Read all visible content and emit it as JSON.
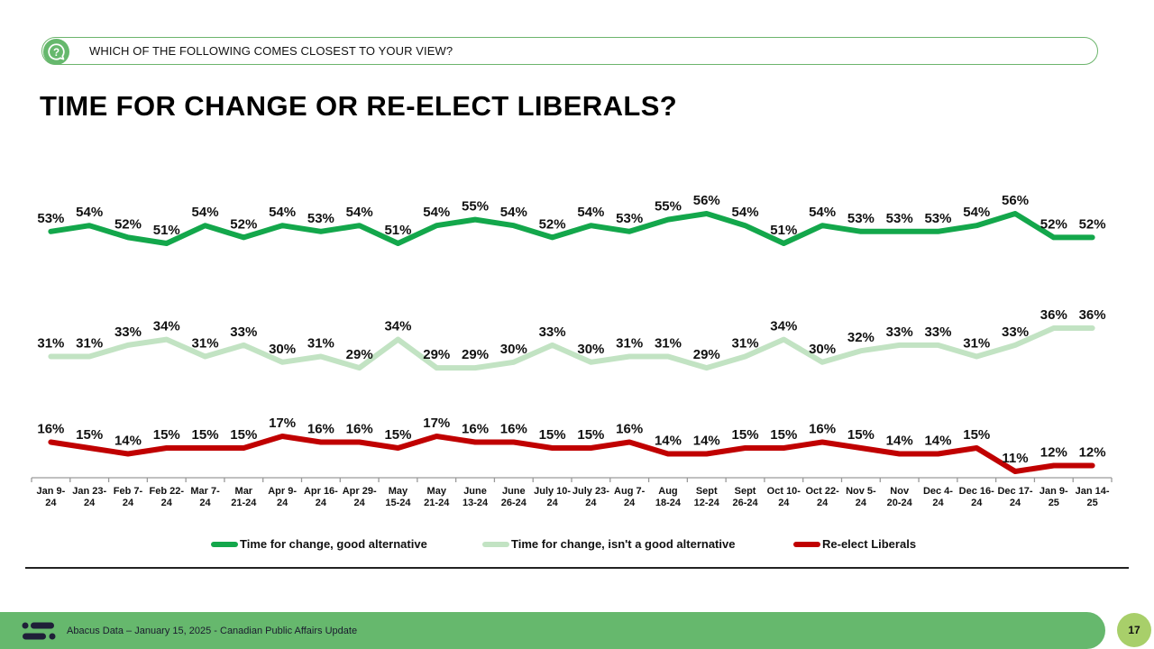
{
  "header": {
    "question": "WHICH OF THE FOLLOWING COMES CLOSEST TO YOUR VIEW?",
    "question_icon": "question-bubble-icon",
    "title": "TIME FOR CHANGE OR RE-ELECT LIBERALS?"
  },
  "colors": {
    "accent_green": "#66b86d",
    "series_good_alt": "#13a74b",
    "series_not_good_alt": "#c2e3c3",
    "series_reelect": "#c00000",
    "page_badge": "#a8cf6a",
    "logo_dark": "#1f1f38"
  },
  "chart_data": {
    "type": "line",
    "title": "TIME FOR CHANGE OR RE-ELECT LIBERALS?",
    "xlabel": "",
    "ylabel": "",
    "grid": false,
    "legend_position": "bottom",
    "value_suffix": "%",
    "categories": [
      [
        "Jan 9-",
        "24"
      ],
      [
        "Jan 23-",
        "24"
      ],
      [
        "Feb 7-",
        "24"
      ],
      [
        "Feb 22-",
        "24"
      ],
      [
        "Mar 7-",
        "24"
      ],
      [
        "Mar",
        "21-24"
      ],
      [
        "Apr 9-",
        "24"
      ],
      [
        "Apr 16-",
        "24"
      ],
      [
        "Apr 29-",
        "24"
      ],
      [
        "May",
        "15-24"
      ],
      [
        "May",
        "21-24"
      ],
      [
        "June",
        "13-24"
      ],
      [
        "June",
        "26-24"
      ],
      [
        "July 10-",
        "24"
      ],
      [
        "July 23-",
        "24"
      ],
      [
        "Aug 7-",
        "24"
      ],
      [
        "Aug",
        "18-24"
      ],
      [
        "Sept",
        "12-24"
      ],
      [
        "Sept",
        "26-24"
      ],
      [
        "Oct 10-",
        "24"
      ],
      [
        "Oct 22-",
        "24"
      ],
      [
        "Nov 5-",
        "24"
      ],
      [
        "Nov",
        "20-24"
      ],
      [
        "Dec 4-",
        "24"
      ],
      [
        "Dec 16-",
        "24"
      ],
      [
        "Dec 17-",
        "24"
      ],
      [
        "Jan 9-",
        "25"
      ],
      [
        "Jan 14-",
        "25"
      ]
    ],
    "series": [
      {
        "name": "Time for change, good alternative",
        "color": "#13a74b",
        "values": [
          53,
          54,
          52,
          51,
          54,
          52,
          54,
          53,
          54,
          51,
          54,
          55,
          54,
          52,
          54,
          53,
          55,
          56,
          54,
          51,
          54,
          53,
          53,
          53,
          54,
          56,
          52,
          52
        ]
      },
      {
        "name": "Time for change, isn't a good alternative",
        "color": "#c2e3c3",
        "values": [
          31,
          31,
          33,
          34,
          31,
          33,
          30,
          31,
          29,
          34,
          29,
          29,
          30,
          33,
          30,
          31,
          31,
          29,
          31,
          34,
          30,
          32,
          33,
          33,
          31,
          33,
          36,
          36
        ]
      },
      {
        "name": "Re-elect Liberals",
        "color": "#c00000",
        "values": [
          16,
          15,
          14,
          15,
          15,
          15,
          17,
          16,
          16,
          15,
          17,
          16,
          16,
          15,
          15,
          16,
          14,
          14,
          15,
          15,
          16,
          15,
          14,
          14,
          15,
          11,
          12,
          12
        ]
      }
    ]
  },
  "legend": {
    "items": [
      {
        "label": "Time for change, good alternative",
        "color": "#13a74b"
      },
      {
        "label": "Time for change, isn't a good alternative",
        "color": "#c2e3c3"
      },
      {
        "label": "Re-elect Liberals",
        "color": "#c00000"
      }
    ]
  },
  "footer": {
    "logo": "abacus-logo-icon",
    "text": "Abacus Data – January 15, 2025 - Canadian Public Affairs Update",
    "page_number": "17"
  }
}
